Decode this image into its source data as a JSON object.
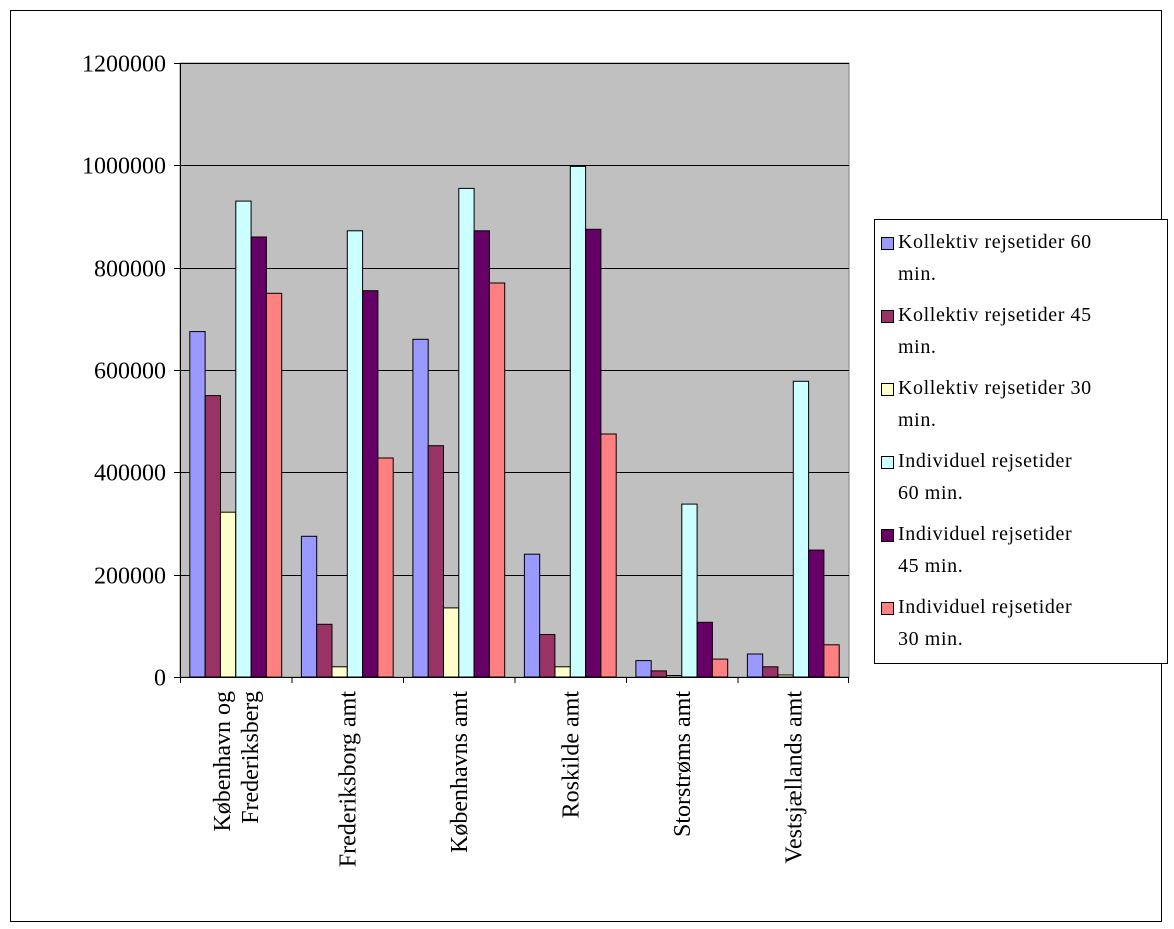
{
  "chart_data": {
    "type": "bar",
    "title": "",
    "xlabel": "",
    "ylabel": "",
    "ylim": [
      0,
      1200000
    ],
    "yticks": [
      "0",
      "200000",
      "400000",
      "600000",
      "800000",
      "1000000",
      "1200000"
    ],
    "ytick_values": [
      0,
      200000,
      400000,
      600000,
      800000,
      1000000,
      1200000
    ],
    "grid": true,
    "legend_position": "right",
    "categories": [
      [
        "København og",
        "Frederiksberg"
      ],
      [
        "Frederiksborg amt"
      ],
      [
        "Københavns amt"
      ],
      [
        "Roskilde amt"
      ],
      [
        "Storstrøms amt"
      ],
      [
        "Vestsjællands amt"
      ]
    ],
    "series": [
      {
        "name": "Kollektiv rejsetider 60 min.",
        "color": "#9999ff",
        "values": [
          675000,
          275000,
          660000,
          240000,
          32000,
          45000
        ]
      },
      {
        "name": "Kollektiv rejsetider 45 min.",
        "color": "#993366",
        "values": [
          550000,
          103000,
          452000,
          83000,
          12000,
          20000
        ]
      },
      {
        "name": "Kollektiv rejsetider 30 min.",
        "color": "#ffffcc",
        "values": [
          322000,
          20000,
          135000,
          20000,
          3000,
          4000
        ]
      },
      {
        "name": "Individuel rejsetider 60 min.",
        "color": "#ccffff",
        "values": [
          930000,
          872000,
          955000,
          998000,
          338000,
          578000
        ]
      },
      {
        "name": "Individuel rejsetider 45 min.",
        "color": "#660066",
        "values": [
          860000,
          755000,
          872000,
          875000,
          107000,
          248000
        ]
      },
      {
        "name": "Individuel rejsetider 30 min.",
        "color": "#ff8080",
        "values": [
          750000,
          428000,
          770000,
          475000,
          35000,
          63000
        ]
      }
    ],
    "plot_background": "#c0c0c0"
  },
  "legend": {
    "items": [
      {
        "line1": "Kollektiv rejsetider 60",
        "line2": "min.",
        "color": "#9999ff"
      },
      {
        "line1": "Kollektiv rejsetider 45",
        "line2": "min.",
        "color": "#993366"
      },
      {
        "line1": "Kollektiv rejsetider 30",
        "line2": "min.",
        "color": "#ffffcc"
      },
      {
        "line1": "Individuel rejsetider",
        "line2": "60 min.",
        "color": "#ccffff"
      },
      {
        "line1": "Individuel rejsetider",
        "line2": "45 min.",
        "color": "#660066"
      },
      {
        "line1": "Individuel rejsetider",
        "line2": "30 min.",
        "color": "#ff8080"
      }
    ]
  }
}
